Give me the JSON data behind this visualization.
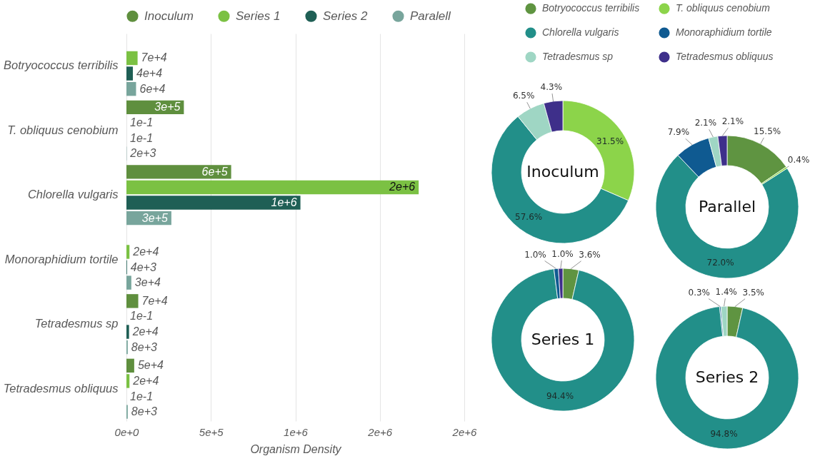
{
  "chart_data": [
    {
      "type": "bar",
      "orientation": "horizontal",
      "xlabel": "Organism Density",
      "categories": [
        "Botryococcus terribilis",
        "T. obliquus cenobium",
        "Chlorella vulgaris",
        "Monoraphidium tortile",
        "Tetradesmus sp",
        "Tetradesmus obliquus"
      ],
      "series": [
        {
          "name": "Inoculum",
          "color": "#5f8f3e",
          "values": [
            null,
            340000,
            620000,
            null,
            70000,
            46000
          ],
          "value_labels": [
            null,
            "3e+5",
            "6e+5",
            null,
            "7e+4",
            "5e+4"
          ]
        },
        {
          "name": "Series 1",
          "color": "#7bc143",
          "values": [
            66000,
            0.1,
            1730000,
            18000,
            0.1,
            18000
          ],
          "value_labels": [
            "7e+4",
            "1e-1",
            "2e+6",
            "2e+4",
            "1e-1",
            "2e+4"
          ]
        },
        {
          "name": "Series 2",
          "color": "#1f5f55",
          "values": [
            38000,
            0.1,
            1030000,
            3500,
            15500,
            0.1
          ],
          "value_labels": [
            "4e+4",
            "1e-1",
            "1e+6",
            "4e+3",
            "2e+4",
            "1e-1"
          ]
        },
        {
          "name": "Paralell",
          "color": "#78a59c",
          "values": [
            57000,
            1500,
            266000,
            29000,
            7800,
            7800
          ],
          "value_labels": [
            "6e+4",
            "2e+3",
            "3e+5",
            "3e+4",
            "8e+3",
            "8e+3"
          ]
        }
      ],
      "xlim": [
        0,
        2000000
      ],
      "xticks": [
        {
          "value": 0,
          "label": "0e+0"
        },
        {
          "value": 500000,
          "label": "5e+5"
        },
        {
          "value": 1000000,
          "label": "1e+6"
        },
        {
          "value": 1500000,
          "label": "2e+6"
        },
        {
          "value": 2000000,
          "label": "2e+6"
        }
      ],
      "grid": "x",
      "legend": "top"
    },
    {
      "type": "donut",
      "categories": [
        "Botryococcus terribilis",
        "T. obliquus cenobium",
        "Chlorella vulgaris",
        "Monoraphidium tortile",
        "Tetradesmus sp",
        "Tetradesmus obliquus"
      ],
      "colors": [
        "#5f9441",
        "#8cd44a",
        "#228f89",
        "#0f5a91",
        "#9fd6c4",
        "#3e2f8a"
      ],
      "legend": "top",
      "series": [
        {
          "name": "Inoculum",
          "values": [
            null,
            31.5,
            57.6,
            null,
            6.5,
            4.3
          ],
          "value_labels": [
            null,
            "31.5%",
            "57.6%",
            null,
            "6.5%",
            "4.3%"
          ]
        },
        {
          "name": "Parallel",
          "values": [
            15.5,
            0.4,
            72.0,
            7.9,
            2.1,
            2.1
          ],
          "value_labels": [
            "15.5%",
            "0.4%",
            "72.0%",
            "7.9%",
            "2.1%",
            "2.1%"
          ]
        },
        {
          "name": "Series 1",
          "values": [
            3.6,
            null,
            94.4,
            1.0,
            null,
            1.0
          ],
          "value_labels": [
            "3.6%",
            null,
            "94.4%",
            "1.0%",
            null,
            "1.0%"
          ]
        },
        {
          "name": "Series 2",
          "values": [
            3.5,
            null,
            94.8,
            0.3,
            1.4,
            null
          ],
          "value_labels": [
            "3.5%",
            null,
            "94.8%",
            "0.3%",
            "1.4%",
            null
          ]
        }
      ]
    }
  ]
}
